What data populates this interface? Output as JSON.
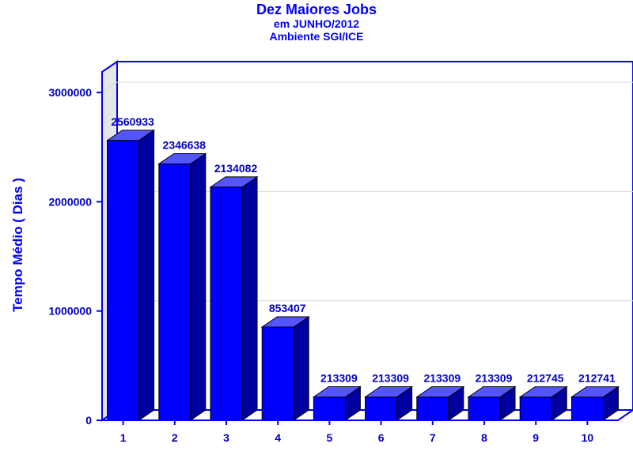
{
  "chart_data": {
    "type": "bar",
    "title": "Dez Maiores Jobs",
    "subtitle": [
      "em JUNHO/2012",
      "Ambiente SGI/ICE"
    ],
    "xlabel": "",
    "ylabel": "Tempo Médio ( Dias )",
    "categories": [
      "1",
      "2",
      "3",
      "4",
      "5",
      "6",
      "7",
      "8",
      "9",
      "10"
    ],
    "values": [
      2560933,
      2346638,
      2134082,
      853407,
      213309,
      213309,
      213309,
      213309,
      212745,
      212741
    ],
    "data_labels": [
      "2560933",
      "2346638",
      "2134082",
      "853407",
      "213309",
      "213309",
      "213309",
      "213309",
      "212745",
      "212741"
    ],
    "ylim": [
      0,
      3000000
    ],
    "yticks": [
      0,
      1000000,
      2000000,
      3000000
    ],
    "ytick_labels": [
      "0",
      "1000000",
      "2000000",
      "3000000"
    ],
    "grid": true,
    "style": "3d-bar"
  },
  "colors": {
    "bar_front": "#0000ff",
    "bar_top": "#5555ff",
    "bar_side": "#0000a0",
    "text": "#0000ff",
    "axis": "#0000ff",
    "wall": "#e6e6e6",
    "grid": "#d9d9d9"
  }
}
